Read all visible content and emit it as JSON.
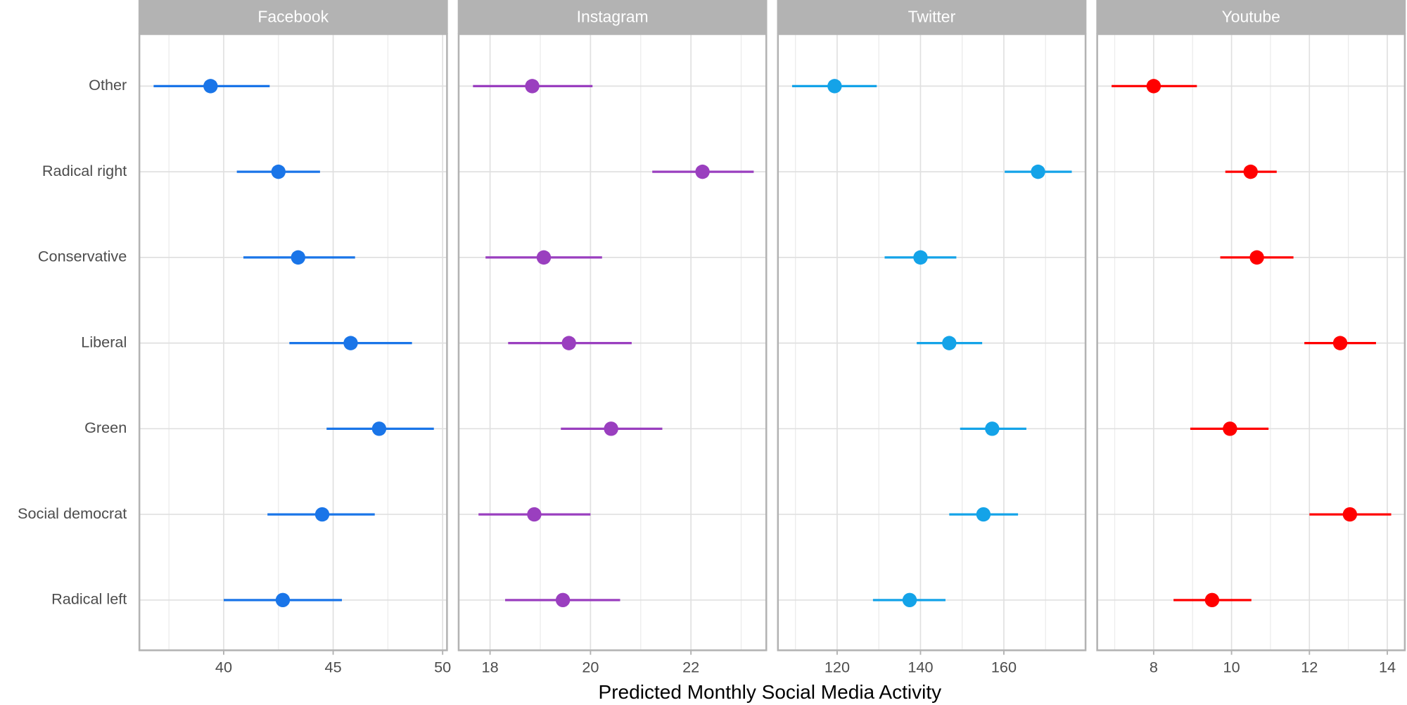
{
  "xlabel": "Predicted Monthly Social Media Activity",
  "categories": [
    "Other",
    "Radical right",
    "Conservative",
    "Liberal",
    "Green",
    "Social democrat",
    "Radical left"
  ],
  "chart_data": [
    {
      "type": "dot-whisker",
      "title": "Facebook",
      "color": "#1a75e8",
      "values": [
        39.4,
        42.5,
        43.4,
        45.8,
        47.1,
        44.5,
        42.7
      ],
      "lower": [
        36.8,
        40.6,
        40.9,
        43.0,
        44.7,
        42.0,
        40.0
      ],
      "upper": [
        42.1,
        44.4,
        46.0,
        48.6,
        49.6,
        46.9,
        45.4
      ],
      "xlim": [
        36.15,
        50.2
      ],
      "xticks": [
        40,
        45,
        50
      ],
      "grid": true
    },
    {
      "type": "dot-whisker",
      "title": "Instagram",
      "color": "#9a3fbf",
      "values": [
        18.84,
        22.23,
        19.07,
        19.57,
        20.41,
        18.88,
        19.45
      ],
      "lower": [
        17.66,
        21.23,
        17.91,
        18.36,
        19.41,
        17.77,
        18.3
      ],
      "upper": [
        20.04,
        23.25,
        20.23,
        20.82,
        21.43,
        20.0,
        20.59
      ],
      "xlim": [
        17.375,
        23.5
      ],
      "xticks": [
        18,
        20,
        22
      ],
      "grid": true
    },
    {
      "type": "dot-whisker",
      "title": "Twitter",
      "color": "#14a3e8",
      "values": [
        119.4,
        168.2,
        140,
        146.9,
        157.2,
        155.1,
        137.4
      ],
      "lower": [
        109.2,
        160.2,
        131.4,
        139.1,
        149.5,
        146.9,
        128.6
      ],
      "upper": [
        129.5,
        176.3,
        148.6,
        154.8,
        165.4,
        163.4,
        146.0
      ],
      "xlim": [
        105.8,
        179.6
      ],
      "xticks": [
        120,
        140,
        160
      ],
      "grid": true
    },
    {
      "type": "dot-whisker",
      "title": "Youtube",
      "color": "#ff0000",
      "values": [
        8.0,
        10.49,
        10.65,
        12.79,
        9.96,
        13.04,
        9.5
      ],
      "lower": [
        6.92,
        9.84,
        9.71,
        11.87,
        8.94,
        12.0,
        8.51
      ],
      "upper": [
        9.11,
        11.16,
        11.59,
        13.71,
        10.95,
        14.1,
        10.51
      ],
      "xlim": [
        6.55,
        14.45
      ],
      "xticks": [
        8,
        10,
        12,
        14
      ],
      "grid": true
    }
  ]
}
